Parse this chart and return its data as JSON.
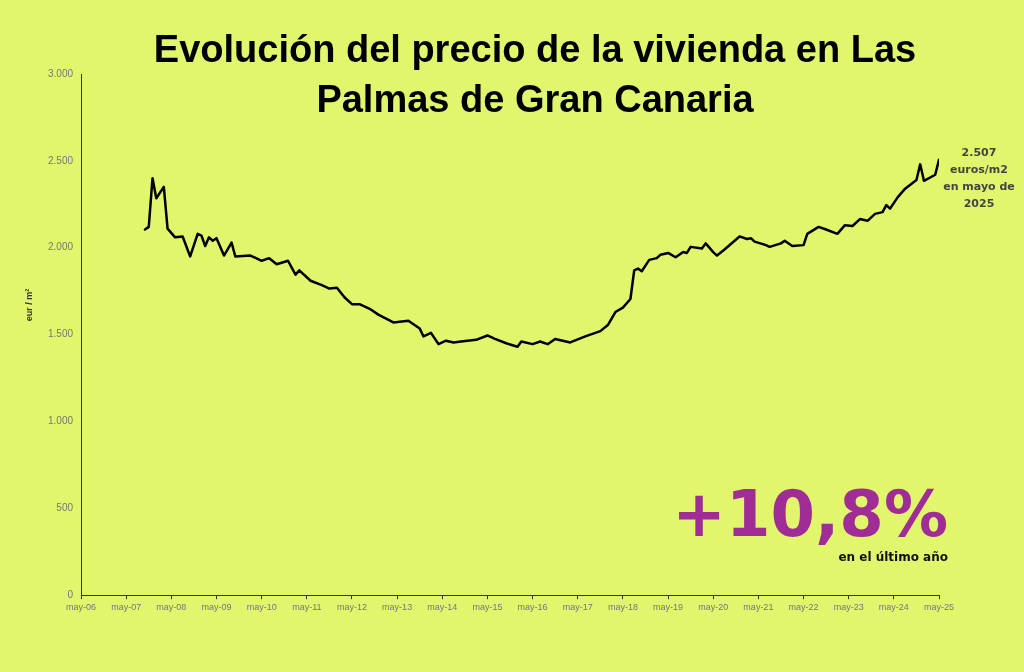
{
  "chart_data": {
    "type": "line",
    "title": "Evolución del precio de la vivienda en Las Palmas de Gran Canaria",
    "ylabel": "eur / m²",
    "x": [
      "2007-10",
      "2007-11",
      "2007-12",
      "2008-01",
      "2008-03",
      "2008-04",
      "2008-06",
      "2008-08",
      "2008-10",
      "2008-12",
      "2009-01",
      "2009-02",
      "2009-03",
      "2009-04",
      "2009-05",
      "2009-07",
      "2009-09",
      "2009-10",
      "2010-02",
      "2010-05",
      "2010-07",
      "2010-09",
      "2010-12",
      "2011-02",
      "2011-03",
      "2011-06",
      "2011-09",
      "2011-11",
      "2012-01",
      "2012-03",
      "2012-05",
      "2012-07",
      "2012-10",
      "2012-12",
      "2013-04",
      "2013-08",
      "2013-11",
      "2013-12",
      "2014-02",
      "2014-04",
      "2014-06",
      "2014-08",
      "2014-10",
      "2015-02",
      "2015-05",
      "2015-07",
      "2015-10",
      "2016-01",
      "2016-02",
      "2016-05",
      "2016-07",
      "2016-09",
      "2016-11",
      "2017-03",
      "2017-07",
      "2017-11",
      "2018-01",
      "2018-03",
      "2018-05",
      "2018-07",
      "2018-08",
      "2018-09",
      "2018-10",
      "2018-12",
      "2019-02",
      "2019-03",
      "2019-05",
      "2019-07",
      "2019-09",
      "2019-10",
      "2019-11",
      "2020-02",
      "2020-03",
      "2020-05",
      "2020-06",
      "2020-08",
      "2020-12",
      "2021-02",
      "2021-03",
      "2021-04",
      "2021-07",
      "2021-08",
      "2021-11",
      "2021-12",
      "2022-02",
      "2022-05",
      "2022-06",
      "2022-09",
      "2022-11",
      "2023-02",
      "2023-04",
      "2023-06",
      "2023-08",
      "2023-10",
      "2023-12",
      "2024-02",
      "2024-03",
      "2024-04",
      "2024-06",
      "2024-08",
      "2024-11",
      "2024-12",
      "2025-01",
      "2025-04",
      "2025-05"
    ],
    "series": [
      {
        "color": "#000000",
        "values": [
          2105,
          2120,
          2400,
          2285,
          2350,
          2110,
          2060,
          2065,
          1950,
          2080,
          2070,
          2010,
          2060,
          2040,
          2055,
          1955,
          2030,
          1950,
          1955,
          1925,
          1940,
          1905,
          1925,
          1845,
          1870,
          1810,
          1785,
          1765,
          1770,
          1715,
          1675,
          1675,
          1645,
          1615,
          1570,
          1580,
          1535,
          1490,
          1510,
          1445,
          1465,
          1455,
          1460,
          1470,
          1495,
          1475,
          1450,
          1430,
          1460,
          1445,
          1460,
          1445,
          1475,
          1455,
          1490,
          1520,
          1555,
          1630,
          1655,
          1705,
          1870,
          1880,
          1865,
          1930,
          1940,
          1960,
          1970,
          1945,
          1975,
          1970,
          2005,
          1995,
          2025,
          1975,
          1955,
          1990,
          2065,
          2050,
          2055,
          2035,
          2015,
          2005,
          2025,
          2040,
          2010,
          2015,
          2080,
          2120,
          2105,
          2080,
          2130,
          2125,
          2165,
          2155,
          2195,
          2205,
          2245,
          2225,
          2290,
          2340,
          2390,
          2480,
          2385,
          2420,
          2507
        ]
      }
    ],
    "xlim": [
      "2006-05",
      "2025-05"
    ],
    "xticks": [
      {
        "value": "2006-05",
        "label": "may-06"
      },
      {
        "value": "2007-05",
        "label": "may-07"
      },
      {
        "value": "2008-05",
        "label": "may-08"
      },
      {
        "value": "2009-05",
        "label": "may-09"
      },
      {
        "value": "2010-05",
        "label": "may-10"
      },
      {
        "value": "2011-05",
        "label": "may-11"
      },
      {
        "value": "2012-05",
        "label": "may-12"
      },
      {
        "value": "2013-05",
        "label": "may-13"
      },
      {
        "value": "2014-05",
        "label": "may-14"
      },
      {
        "value": "2015-05",
        "label": "may-15"
      },
      {
        "value": "2016-05",
        "label": "may-16"
      },
      {
        "value": "2017-05",
        "label": "may-17"
      },
      {
        "value": "2018-05",
        "label": "may-18"
      },
      {
        "value": "2019-05",
        "label": "may-19"
      },
      {
        "value": "2020-05",
        "label": "may-20"
      },
      {
        "value": "2021-05",
        "label": "may-21"
      },
      {
        "value": "2022-05",
        "label": "may-22"
      },
      {
        "value": "2023-05",
        "label": "may-23"
      },
      {
        "value": "2024-05",
        "label": "may-24"
      },
      {
        "value": "2025-05",
        "label": "may-25"
      }
    ],
    "ylim": [
      0,
      3000
    ],
    "yticks": [
      {
        "value": 0,
        "label": "0"
      },
      {
        "value": 500,
        "label": "500"
      },
      {
        "value": 1000,
        "label": "1.000"
      },
      {
        "value": 1500,
        "label": "1.500"
      },
      {
        "value": 2000,
        "label": "2.000"
      },
      {
        "value": 2500,
        "label": "2.500"
      },
      {
        "value": 3000,
        "label": "3.000"
      }
    ],
    "grid": false,
    "legend": false,
    "marker": "none",
    "line_style": "solid",
    "annotations": [
      {
        "text": "2.507 euros/m2 en mayo de 2025",
        "x": "2025-05",
        "y": 2507
      },
      "+10,8%",
      "en el último año"
    ]
  }
}
